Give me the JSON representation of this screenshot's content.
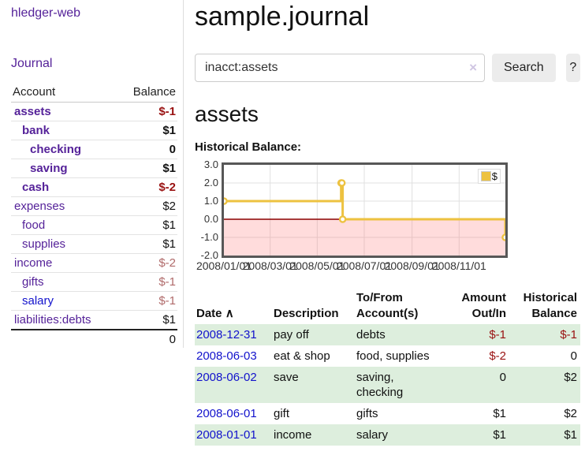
{
  "sidebar": {
    "brand": "hledger-web",
    "nav": {
      "journal": "Journal"
    },
    "accounts": {
      "headers": {
        "account": "Account",
        "balance": "Balance"
      },
      "rows": [
        {
          "name": "assets",
          "balance": "$-1"
        },
        {
          "name": "bank",
          "balance": "$1"
        },
        {
          "name": "checking",
          "balance": "0"
        },
        {
          "name": "saving",
          "balance": "$1"
        },
        {
          "name": "cash",
          "balance": "$-2"
        },
        {
          "name": "expenses",
          "balance": "$2"
        },
        {
          "name": "food",
          "balance": "$1"
        },
        {
          "name": "supplies",
          "balance": "$1"
        },
        {
          "name": "income",
          "balance": "$-2"
        },
        {
          "name": "gifts",
          "balance": "$-1"
        },
        {
          "name": "salary",
          "balance": "$-1"
        },
        {
          "name": "liabilities:debts",
          "balance": "$1"
        }
      ],
      "total": "0"
    }
  },
  "main": {
    "title": "sample.journal",
    "search": {
      "value": "inacct:assets",
      "clear_icon": "×",
      "button": "Search",
      "help": "?"
    },
    "account_heading": "assets",
    "chart_heading": "Historical Balance:"
  },
  "chart_data": {
    "type": "line",
    "step": true,
    "legend": "$",
    "series": [
      {
        "name": "$",
        "color": "#edc240",
        "points": [
          {
            "date": "2008-01-01",
            "day": 0,
            "value": 1
          },
          {
            "date": "2008-06-01",
            "day": 152,
            "value": 2
          },
          {
            "date": "2008-06-02",
            "day": 153,
            "value": 2
          },
          {
            "date": "2008-06-03",
            "day": 154,
            "value": 0
          },
          {
            "date": "2008-12-31",
            "day": 365,
            "value": -1
          }
        ]
      }
    ],
    "x_ticks": [
      {
        "label": "2008/01/01",
        "day": 0
      },
      {
        "label": "2008/03/01",
        "day": 60
      },
      {
        "label": "2008/05/01",
        "day": 121
      },
      {
        "label": "2008/07/01",
        "day": 182
      },
      {
        "label": "2008/09/01",
        "day": 244
      },
      {
        "label": "2008/11/01",
        "day": 305
      }
    ],
    "y_ticks": [
      {
        "label": "3.0",
        "value": 3
      },
      {
        "label": "2.0",
        "value": 2
      },
      {
        "label": "1.0",
        "value": 1
      },
      {
        "label": "0.0",
        "value": 0
      },
      {
        "label": "-1.0",
        "value": -1
      },
      {
        "label": "-2.0",
        "value": -2
      }
    ],
    "x_range_days": [
      0,
      365
    ],
    "ylim": [
      -2,
      3
    ],
    "grid": true,
    "legend_position": "top-right",
    "colors": {
      "line": "#edc240",
      "negative_region": "rgba(255,110,110,0.24)",
      "zero_line": "#8b0000",
      "gridline": "#e0e0e0",
      "border": "#575757"
    }
  },
  "register": {
    "headers": {
      "date": "Date",
      "sort_icon": "∧",
      "description": "Description",
      "account": "To/From Account(s)",
      "amount": "Amount Out/In",
      "balance": "Historical Balance"
    },
    "rows": [
      {
        "date": "2008-12-31",
        "description": "pay off",
        "account": "debts",
        "amount": "$-1",
        "balance": "$-1"
      },
      {
        "date": "2008-06-03",
        "description": "eat & shop",
        "account": "food, supplies",
        "amount": "$-2",
        "balance": "0"
      },
      {
        "date": "2008-06-02",
        "description": "save",
        "account": "saving, checking",
        "amount": "0",
        "balance": "$2"
      },
      {
        "date": "2008-06-01",
        "description": "gift",
        "account": "gifts",
        "amount": "$1",
        "balance": "$2"
      },
      {
        "date": "2008-01-01",
        "description": "income",
        "account": "salary",
        "amount": "$1",
        "balance": "$1"
      }
    ]
  }
}
